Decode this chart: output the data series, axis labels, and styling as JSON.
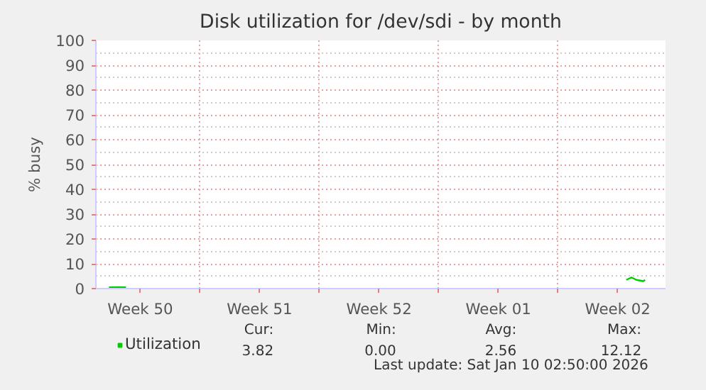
{
  "chart_data": {
    "type": "line",
    "title": "Disk utilization for /dev/sdi - by month",
    "ylabel": "% busy",
    "x": [
      "2025-12-09T16:00",
      "2025-12-10T04:48",
      "2025-12-10T16:00",
      "2025-12-28T00:00",
      "2026-01-09T00:00",
      "2026-01-09T07:12",
      "2026-01-09T14:24",
      "2026-01-10T00:00",
      "2026-01-10T02:24"
    ],
    "series": [
      {
        "name": "Utilization",
        "color": "#00cc00",
        "values": [
          0.5,
          0.6,
          0.5,
          null,
          3.5,
          4.5,
          3.5,
          3,
          3.5
        ]
      }
    ],
    "xlim": [
      "2025-12-08T21:36",
      "2026-01-11T07:12"
    ],
    "xticks": [
      {
        "value": "2025-12-11T12:00",
        "label": "Week 50"
      },
      {
        "value": "2025-12-15",
        "label": null
      },
      {
        "value": "2025-12-18T12:00",
        "label": "Week 51"
      },
      {
        "value": "2025-12-22",
        "label": null
      },
      {
        "value": "2025-12-25T12:00",
        "label": "Week 52"
      },
      {
        "value": "2025-12-29",
        "label": null
      },
      {
        "value": "2026-01-01T12:00",
        "label": "Week 01"
      },
      {
        "value": "2026-01-05",
        "label": null
      },
      {
        "value": "2026-01-08T12:00",
        "label": "Week 02"
      }
    ],
    "ylim": [
      0,
      100
    ],
    "yticks": [
      0,
      10,
      20,
      30,
      40,
      50,
      60,
      70,
      80,
      90,
      100
    ],
    "grid": true,
    "legend": "bottom left",
    "marker": "none",
    "line_style": "solid",
    "annotations": [
      "Cur:",
      "Min:",
      "Avg:",
      "Max:",
      "3.82",
      "0.00",
      "2.56",
      "12.12",
      "Last update: Sat Jan 10 02:50:00 2026"
    ]
  }
}
